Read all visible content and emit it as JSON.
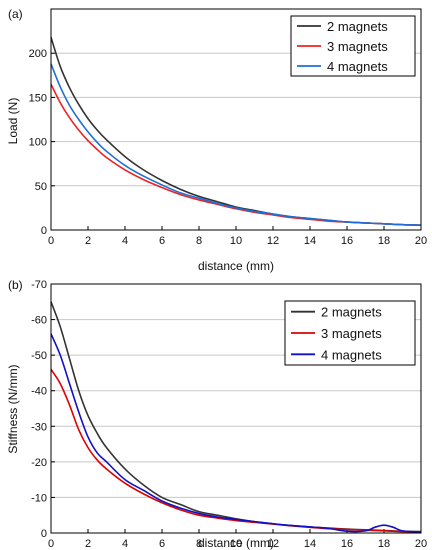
{
  "chart_data": [
    {
      "type": "line",
      "panel_label": "(a)",
      "xlabel": "distance (mm)",
      "ylabel": "Load (N)",
      "xlim": [
        0,
        20
      ],
      "ylim": [
        0,
        250
      ],
      "xticks": [
        0,
        2,
        4,
        6,
        8,
        10,
        12,
        14,
        16,
        18,
        20
      ],
      "yticks": [
        0,
        50,
        100,
        150,
        200
      ],
      "grid": "horizontal",
      "legend": "top-right",
      "x": [
        0,
        0.5,
        1,
        1.5,
        2,
        2.5,
        3,
        4,
        5,
        6,
        7,
        8,
        9,
        10,
        11,
        12,
        13,
        14,
        15,
        16,
        17,
        18,
        19,
        20
      ],
      "series": [
        {
          "name": "2 magnets",
          "color": "#333333",
          "values": [
            218,
            185,
            161,
            142,
            126,
            113,
            102,
            83,
            68,
            56,
            46,
            38,
            32,
            26,
            22,
            18,
            15,
            13,
            11,
            9,
            8,
            7,
            6,
            5.5
          ]
        },
        {
          "name": "3 magnets",
          "color": "#ee2222",
          "values": [
            165,
            144,
            127,
            113,
            101,
            91,
            82,
            68,
            57,
            48,
            40,
            34,
            29,
            24,
            20,
            17,
            14,
            12,
            10,
            9,
            8,
            7,
            6,
            5.5
          ]
        },
        {
          "name": "4 magnets",
          "color": "#1e6fd9",
          "values": [
            188,
            162,
            141,
            125,
            111,
            99,
            89,
            73,
            61,
            51,
            42,
            36,
            30,
            25,
            21,
            18,
            15,
            13,
            11,
            9,
            8,
            7,
            6,
            5.5
          ]
        }
      ]
    },
    {
      "type": "line",
      "panel_label": "(b)",
      "xlabel": "distance (mm)",
      "ylabel": "Stiffness (N/mm)",
      "xlim": [
        0,
        20
      ],
      "ylim": [
        0,
        -70
      ],
      "y_inverted": true,
      "xticks": [
        0,
        2,
        4,
        6,
        8,
        10,
        12,
        14,
        16,
        18,
        20
      ],
      "yticks": [
        0,
        -10,
        -20,
        -30,
        -40,
        -50,
        -60,
        -70
      ],
      "grid": "horizontal",
      "legend": "top-right",
      "x": [
        0,
        0.5,
        1,
        1.5,
        2,
        2.5,
        3,
        4,
        5,
        6,
        7,
        8,
        9,
        10,
        11,
        12,
        13,
        14,
        15,
        16,
        17,
        17.5,
        18,
        18.5,
        19,
        20
      ],
      "series": [
        {
          "name": "2 magnets",
          "color": "#333333",
          "values": [
            -65,
            -58,
            -49,
            -40,
            -33,
            -28,
            -24,
            -18,
            -13.5,
            -10,
            -8,
            -6,
            -5,
            -4,
            -3.2,
            -2.6,
            -2.1,
            -1.7,
            -1.4,
            -1.1,
            -0.9,
            -0.8,
            -0.7,
            -0.6,
            -0.5,
            -0.4
          ]
        },
        {
          "name": "3 magnets",
          "color": "#e00000",
          "values": [
            -46,
            -42,
            -36,
            -29,
            -24,
            -20.5,
            -18,
            -14,
            -11,
            -8.5,
            -6.5,
            -5,
            -4.2,
            -3.5,
            -3,
            -2.5,
            -2,
            -1.6,
            -1.2,
            -1,
            -0.8,
            -0.7,
            -0.6,
            -0.5,
            -0.4,
            -0.3
          ]
        },
        {
          "name": "4 magnets",
          "color": "#1010c8",
          "values": [
            -56,
            -50,
            -42,
            -34,
            -27,
            -22.5,
            -20,
            -15,
            -12,
            -9,
            -7,
            -5.5,
            -4.5,
            -3.8,
            -3.2,
            -2.6,
            -2.1,
            -1.7,
            -1.3,
            -0.5,
            -0.6,
            -1.6,
            -2.2,
            -1.6,
            -0.6,
            -0.3
          ]
        }
      ]
    }
  ]
}
